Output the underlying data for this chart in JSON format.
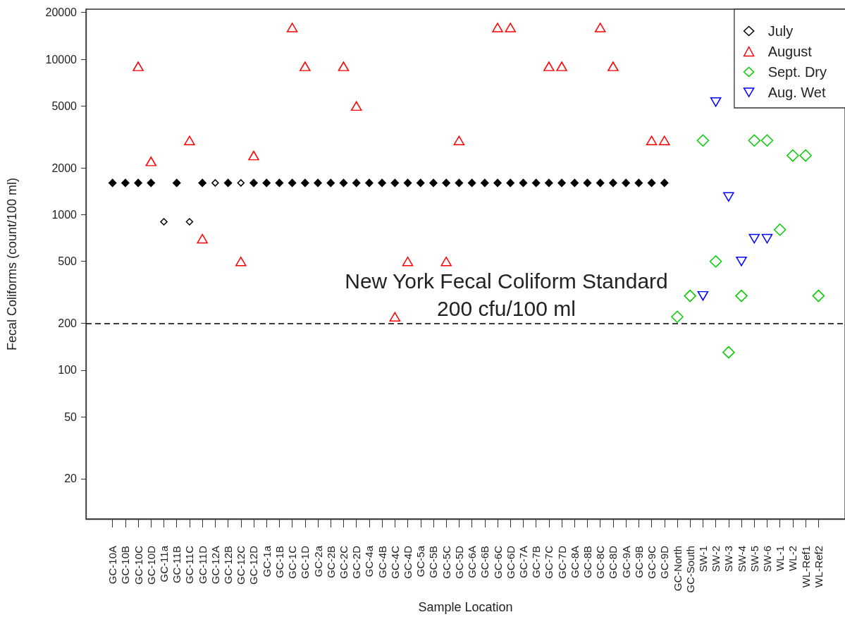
{
  "chart_data": {
    "type": "scatter",
    "xlabel": "Sample Location",
    "ylabel": "Fecal Coliforms (count/100 ml)",
    "categories": [
      "GC-10A",
      "GC-10B",
      "GC-10C",
      "GC-10D",
      "GC-11a",
      "GC-11B",
      "GC-11C",
      "GC-11D",
      "GC-12A",
      "GC-12B",
      "GC-12C",
      "GC-12D",
      "GC-1a",
      "GC-1B",
      "GC-1C",
      "GC-1D",
      "GC-2a",
      "GC-2B",
      "GC-2C",
      "GC-2D",
      "GC-4a",
      "GC-4B",
      "GC-4C",
      "GC-4D",
      "GC-5a",
      "GC-5B",
      "GC-5C",
      "GC-5D",
      "GC-6A",
      "GC-6B",
      "GC-6C",
      "GC-6D",
      "GC-7A",
      "GC-7B",
      "GC-7C",
      "GC-7D",
      "GC-8A",
      "GC-8B",
      "GC-8C",
      "GC-8D",
      "GC-9A",
      "GC-9B",
      "GC-9C",
      "GC-9D",
      "GC-North",
      "GC-South",
      "SW-1",
      "SW-2",
      "SW-3",
      "SW-4",
      "SW-5",
      "SW-6",
      "WL-1",
      "WL-2",
      "WL-Ref1",
      "WL-Ref2"
    ],
    "series": [
      {
        "name": "July",
        "color": "#000000",
        "marker": "diamond",
        "values": [
          null,
          null,
          null,
          null,
          900,
          null,
          900,
          null,
          1600,
          null,
          1600,
          null,
          null,
          null,
          null,
          null,
          null,
          null,
          null,
          null,
          null,
          null,
          null,
          null,
          null,
          null,
          null,
          null,
          null,
          null,
          null,
          null,
          null,
          null,
          null,
          null,
          null,
          null,
          null,
          null,
          null,
          null,
          null,
          null,
          null,
          null,
          null,
          null,
          null,
          null,
          null,
          null,
          null,
          null,
          null,
          null
        ]
      },
      {
        "color": "#000000",
        "marker": "diamond",
        "values": [
          1600,
          1600,
          1600,
          1600,
          null,
          1600,
          null,
          1600,
          null,
          1600,
          null,
          1600,
          1600,
          1600,
          1600,
          1600,
          1600,
          1600,
          1600,
          1600,
          1600,
          1600,
          1600,
          1600,
          1600,
          1600,
          1600,
          1600,
          1600,
          1600,
          1600,
          1600,
          1600,
          1600,
          1600,
          1600,
          1600,
          1600,
          1600,
          1600,
          1600,
          1600,
          1600,
          1600,
          null,
          null,
          null,
          null,
          null,
          null,
          null,
          null,
          null,
          null,
          null,
          null
        ]
      },
      {
        "name": "August",
        "color": "#ff0000",
        "marker": "triangle",
        "values": [
          null,
          null,
          9000,
          2200,
          null,
          null,
          3000,
          700,
          null,
          null,
          500,
          2400,
          null,
          null,
          16000,
          9000,
          null,
          null,
          9000,
          5000,
          null,
          null,
          220,
          500,
          null,
          null,
          500,
          3000,
          null,
          null,
          16000,
          16000,
          null,
          null,
          9000,
          9000,
          null,
          null,
          16000,
          9000,
          null,
          null,
          3000,
          3000,
          null,
          null,
          null,
          null,
          null,
          null,
          null,
          null,
          null,
          null,
          null,
          null
        ]
      },
      {
        "name": "Sept. Dry",
        "color": "#00cd00",
        "marker": "diamond",
        "values": [
          null,
          null,
          null,
          null,
          null,
          null,
          null,
          null,
          null,
          null,
          null,
          null,
          null,
          null,
          null,
          null,
          null,
          null,
          null,
          null,
          null,
          null,
          null,
          null,
          null,
          null,
          null,
          null,
          null,
          null,
          null,
          null,
          null,
          null,
          null,
          null,
          null,
          null,
          null,
          null,
          null,
          null,
          null,
          null,
          220,
          300,
          3000,
          500,
          130,
          300,
          3000,
          3000,
          800,
          2400,
          2400,
          300
        ]
      },
      {
        "name": "Aug. Wet",
        "color": "#0000ff",
        "marker": "triangle-down",
        "values": [
          null,
          null,
          null,
          null,
          null,
          null,
          null,
          null,
          null,
          null,
          null,
          null,
          null,
          null,
          null,
          null,
          null,
          null,
          null,
          null,
          null,
          null,
          null,
          null,
          null,
          null,
          null,
          null,
          null,
          null,
          null,
          null,
          null,
          null,
          null,
          null,
          null,
          null,
          null,
          null,
          null,
          null,
          null,
          null,
          null,
          null,
          300,
          5300,
          1300,
          500,
          700,
          700,
          null,
          null,
          null,
          null
        ]
      }
    ],
    "ylim": [
      11,
      21000
    ],
    "yticks": [
      20,
      50,
      100,
      200,
      500,
      1000,
      2000,
      5000,
      10000,
      20000
    ],
    "log": "y",
    "legend": "top right",
    "ref_lines": [
      {
        "axis": "y",
        "value": 200,
        "label": "New York Fecal Coliform Standard\n200 cfu/100 ml",
        "color": "#000000",
        "line_style": "dashed"
      }
    ]
  }
}
